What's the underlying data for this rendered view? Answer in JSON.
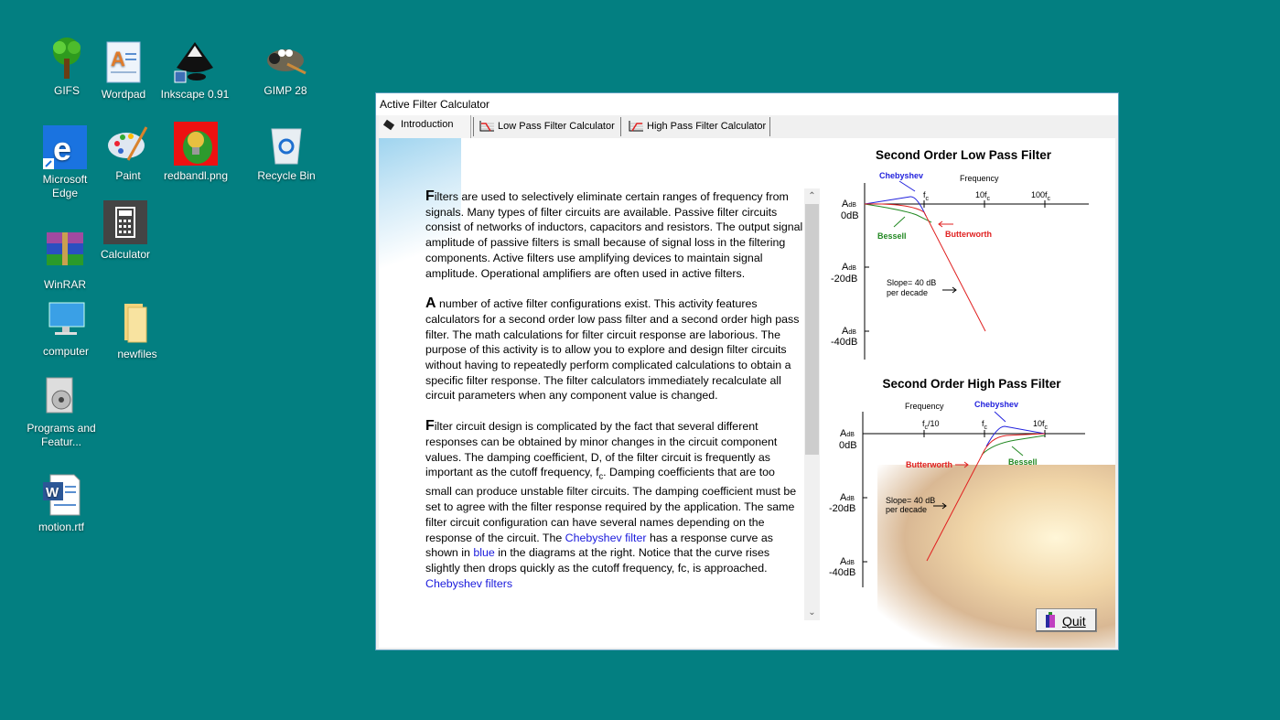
{
  "desktop": {
    "icons": [
      {
        "label": "GIFS",
        "icon": "tree-icon"
      },
      {
        "label": "Wordpad",
        "icon": "wordpad-icon"
      },
      {
        "label": "Inkscape 0.91",
        "icon": "inkscape-icon"
      },
      {
        "label": "GIMP 28",
        "icon": "gimp-icon"
      },
      {
        "label": "Microsoft Edge",
        "icon": "edge-icon"
      },
      {
        "label": "Paint",
        "icon": "paint-palette-icon"
      },
      {
        "label": "redbandl.png",
        "icon": "image-file-icon"
      },
      {
        "label": "Recycle Bin",
        "icon": "recycle-bin-icon"
      },
      {
        "label": "Calculator",
        "icon": "calculator-icon"
      },
      {
        "label": "WinRAR",
        "icon": "winrar-icon"
      },
      {
        "label": "computer",
        "icon": "computer-icon"
      },
      {
        "label": "newfiles",
        "icon": "folder-icon"
      },
      {
        "label": "Programs and Featur...",
        "icon": "programs-icon"
      },
      {
        "label": "motion.rtf",
        "icon": "word-document-icon"
      }
    ]
  },
  "window": {
    "title": "Active Filter Calculator",
    "tabs": [
      {
        "label": "Introduction",
        "active": true
      },
      {
        "label": "Low Pass Filter Calculator",
        "active": false
      },
      {
        "label": "High Pass Filter Calculator",
        "active": false
      }
    ],
    "intro": {
      "p1_drop": "F",
      "p1": "ilters are used to selectively eliminate certain ranges of frequency from signals. Many types of filter circuits are available. Passive filter circuits consist of networks of inductors, capacitors and resistors. The output signal amplitude of passive filters is small because of signal loss in the filtering components. Active filters use amplifying devices to maintain signal amplitude. Operational amplifiers are often used in active filters.",
      "p2_drop": "A",
      "p2": " number of active filter configurations exist. This activity features calculators for a second order low pass filter and a second order high pass filter. The math calculations for filter circuit response are laborious. The purpose of this activity is to allow you to explore and design filter circuits without having to repeatedly perform complicated calculations to obtain a specific filter response. The filter calculators immediately recalculate all circuit parameters when any component value is changed.",
      "p3_drop": "F",
      "p3a": "ilter circuit design is complicated by the fact that several different responses can be obtained by minor changes in the circuit component values. The damping coefficient, D, of the filter circuit is frequently as important as the cutoff frequency, f",
      "p3a_sub": "c",
      "p3b": ".  Damping coefficients that are too small can produce unstable filter circuits. The damping coefficient must be set to agree with the filter response required by the application. The same filter circuit configuration can have several names depending on the response of the circuit. The ",
      "p3_link1": "Chebyshev filter",
      "p3c": " has a response curve as shown in ",
      "p3_blue": "blue",
      "p3d": " in the diagrams at the right. Notice that the curve rises slightly then drops quickly as the cutoff frequency, fc, is approached. ",
      "p3_link2": "Chebyshev filters"
    },
    "lowpass": {
      "title": "Second Order Low Pass Filter",
      "frequency": "Frequency",
      "ticks": [
        "f",
        "10f",
        "100f"
      ],
      "tick_sub": "c",
      "a": "A",
      "db": "dB",
      "levels": [
        "0dB",
        "-20dB",
        "-40dB"
      ],
      "chebyshev": "Chebyshev",
      "bessell": "Bessell",
      "butterworth": "Butterworth",
      "slope1": "Slope= 40 dB",
      "slope2": "per decade"
    },
    "highpass": {
      "title": "Second Order High Pass Filter",
      "frequency": "Frequency",
      "ticks": [
        "f",
        "f",
        "10f"
      ],
      "tick_suffix0": "/10",
      "tick_sub": "c",
      "a": "A",
      "db": "dB",
      "levels": [
        "0dB",
        "-20dB",
        "-40dB"
      ],
      "chebyshev": "Chebyshev",
      "bessell": "Bessell",
      "butterworth": "Butterworth",
      "slope1": "Slope= 40 dB",
      "slope2": "per decade"
    },
    "quit_label": "Quit",
    "colors": {
      "chebyshev": "#2222dd",
      "butterworth": "#e02020",
      "bessell": "#228822"
    }
  }
}
